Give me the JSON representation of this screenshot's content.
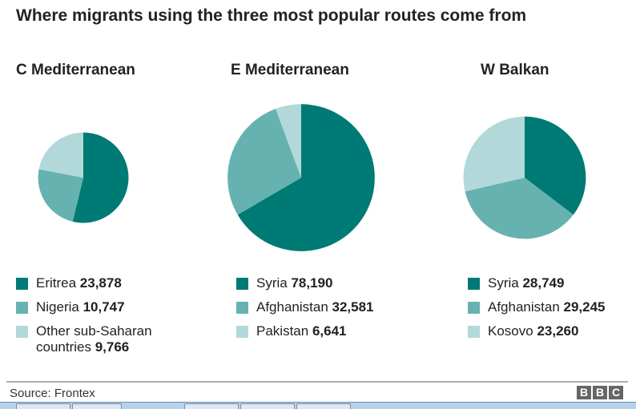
{
  "title": "Where migrants using the three most popular routes come from",
  "colors": [
    "#007a74",
    "#66b2b0",
    "#b2d8da"
  ],
  "chart_data": [
    {
      "type": "pie",
      "title": "C Mediterranean",
      "labels": [
        "Eritrea",
        "Nigeria",
        "Other sub-Saharan countries"
      ],
      "values": [
        23878,
        10747,
        9766
      ],
      "value_labels": [
        "23,878",
        "10,747",
        "9,766"
      ]
    },
    {
      "type": "pie",
      "title": "E Mediterranean",
      "labels": [
        "Syria",
        "Afghanistan",
        "Pakistan"
      ],
      "values": [
        78190,
        32581,
        6641
      ],
      "value_labels": [
        "78,190",
        "32,581",
        "6,641"
      ]
    },
    {
      "type": "pie",
      "title": "W Balkan",
      "labels": [
        "Syria",
        "Afghanistan",
        "Kosovo"
      ],
      "values": [
        28749,
        29245,
        23260
      ],
      "value_labels": [
        "28,749",
        "29,245",
        "23,260"
      ]
    }
  ],
  "footer": {
    "source": "Source: Frontex",
    "logo": "BBC"
  }
}
